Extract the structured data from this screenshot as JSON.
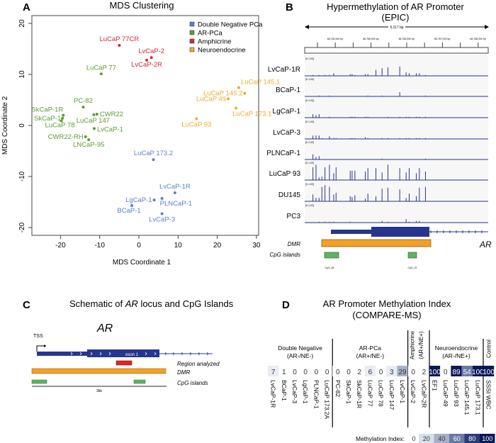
{
  "colors": {
    "double_negative": "#5b7fce",
    "ar_pca": "#5f9a32",
    "amphicrine": "#d6273a",
    "neuroendocrine": "#f0a92c",
    "track": "#26358f",
    "dmr": "#f4a024",
    "cpg": "#5fb55f",
    "region": "#e2222a"
  },
  "panelA": {
    "letter": "A",
    "chart_data": {
      "type": "scatter",
      "title": "MDS Clustering",
      "xlabel": "MDS Coordinate 1",
      "ylabel": "MDS Coordinate 2",
      "xlim": [
        -27,
        31
      ],
      "ylim": [
        -21.5,
        21.5
      ],
      "xticks": [
        -20,
        -10,
        0,
        10,
        20,
        30
      ],
      "yticks": [
        -20,
        -10,
        0,
        10,
        20
      ],
      "legend_position": "top-right",
      "grid": false,
      "series": [
        {
          "name": "Double Negative PCa",
          "color_key": "double_negative",
          "points": [
            {
              "label": "LuCaP 173.2",
              "x": 3.7,
              "y": -6.7
            },
            {
              "label": "LvCaP-1R",
              "x": 9.2,
              "y": -13.2
            },
            {
              "label": "LgCaP-1",
              "x": 3.9,
              "y": -14.6
            },
            {
              "label": "PLNCaP-1",
              "x": 5.9,
              "y": -14.3
            },
            {
              "label": "BCaP-1",
              "x": -1.8,
              "y": -15.7
            },
            {
              "label": "LvCaP-3",
              "x": 5.9,
              "y": -17.3
            }
          ]
        },
        {
          "name": "AR-PCa",
          "color_key": "ar_pca",
          "points": [
            {
              "label": "LuCaP 77",
              "x": -9.6,
              "y": 10.1
            },
            {
              "label": "PC-82",
              "x": -14.2,
              "y": 3.6
            },
            {
              "label": "SkCaP-1R",
              "x": -19.3,
              "y": 2.0
            },
            {
              "label": "SkCaP-1",
              "x": -19.5,
              "y": 1.4
            },
            {
              "label": "LuCaP 78",
              "x": -19.8,
              "y": 0.9
            },
            {
              "label": "CWR22",
              "x": -10.7,
              "y": 2.2
            },
            {
              "label": "LuCaP 147",
              "x": -11.5,
              "y": 2.1
            },
            {
              "label": "LvCaP-1",
              "x": -11.4,
              "y": -0.6
            },
            {
              "label": "CWR22-RH",
              "x": -13.6,
              "y": -2.2
            },
            {
              "label": "LNCaP-95",
              "x": -12.8,
              "y": -2.8
            }
          ]
        },
        {
          "name": "Amphicrine",
          "color_key": "amphicrine",
          "points": [
            {
              "label": "LuCaP 77CR",
              "x": -5.0,
              "y": 15.7
            },
            {
              "label": "LvCaP-2",
              "x": 3.2,
              "y": 13.3
            },
            {
              "label": "LvCaP-2R",
              "x": 2.0,
              "y": 12.8
            }
          ]
        },
        {
          "name": "Neuroendocrine",
          "color_key": "neuroendocrine",
          "points": [
            {
              "label": "LuCaP 145.1",
              "x": 25.5,
              "y": 7.4
            },
            {
              "label": "LuCaP 145.2",
              "x": 27.0,
              "y": 6.3
            },
            {
              "label": "LuCaP 49",
              "x": 22.8,
              "y": 5.2
            },
            {
              "label": "LuCaP 173.1",
              "x": 24.8,
              "y": 3.4
            },
            {
              "label": "LuCaP 93",
              "x": 14.7,
              "y": 1.3
            }
          ]
        }
      ]
    }
  },
  "panelB": {
    "letter": "B",
    "chart_data": {
      "type": "bar",
      "title": "Hypermethylation of AR Promoter",
      "subtitle": "(EPIC)",
      "span_label": "5,117 bp",
      "coord_labels": [
        "66,764,000 bp",
        "66,765,000 bp",
        "66,766,000 bp",
        "66,767,000 bp",
        "66,768,000 bp"
      ],
      "track_range": "[0-1.00]",
      "tracks": [
        {
          "name": "LvCaP-1R",
          "values": [
            0.05,
            0,
            0.05,
            0,
            0.05,
            0.05,
            0.15,
            0,
            0.1,
            0.1,
            0.05,
            0.1,
            0.1,
            0.35,
            0.45,
            0.5,
            0.55,
            0.2,
            0.15,
            0.15,
            0.15,
            0.05
          ]
        },
        {
          "name": "BCaP-1",
          "values": [
            0,
            0,
            0.03,
            0,
            0,
            0.03,
            0,
            0,
            0,
            0,
            0,
            0,
            0.03,
            0,
            0.03,
            0,
            0.25,
            0,
            0,
            0,
            0,
            0.03
          ]
        },
        {
          "name": "LgCaP-1",
          "values": [
            0.2,
            0.15,
            0.2,
            0,
            0,
            0.05,
            0,
            0,
            0.02,
            0.02,
            0.02,
            0.02,
            0.02,
            0,
            0,
            0.02,
            0.02,
            0.02,
            0.02,
            0.02,
            0.02,
            0.02
          ]
        },
        {
          "name": "LvCaP-3",
          "values": [
            0.2,
            0.2,
            0.2,
            0.05,
            0,
            0.15,
            0.05,
            0.03,
            0.03,
            0.03,
            0.03,
            0.1,
            0.03,
            0,
            0.03,
            0.05,
            0.05,
            0.03,
            0.05,
            0.03,
            0.03,
            0.03
          ]
        },
        {
          "name": "PLNCaP-1",
          "values": [
            0.3,
            0.15,
            0.2,
            0,
            0,
            0,
            0,
            0,
            0,
            0,
            0,
            0,
            0,
            0,
            0.05,
            0,
            0,
            0,
            0,
            0,
            0,
            0.03
          ]
        },
        {
          "name": "LuCaP 93",
          "values": [
            0.75,
            0.9,
            0.15,
            0.2,
            0.75,
            0.9,
            0.4,
            0.75,
            0.55,
            0.55,
            0.55,
            0.5,
            0.7,
            0.7,
            0.45,
            0.9,
            0.7,
            0.45,
            0.7,
            0.4,
            0.7,
            0.5
          ]
        },
        {
          "name": "DU145",
          "values": [
            0.4,
            0.2,
            0.2,
            0.85,
            0.95,
            0.85,
            0.4,
            0.5,
            0.3,
            0.25,
            0.35,
            0.15,
            0.45,
            0.3,
            0.75,
            0.8,
            0.7,
            0.2,
            0.45,
            0.3,
            0.8,
            0.85
          ]
        },
        {
          "name": "PC3",
          "values": [
            0,
            0,
            0.05,
            0,
            0.05,
            0.03,
            0.05,
            0,
            0.05,
            0,
            0,
            0,
            0,
            0,
            0.1,
            0.05,
            0,
            0.2,
            0.05,
            0.1,
            0.1,
            0
          ]
        }
      ],
      "gene_label": "AR",
      "dmr_label": "DMR",
      "cpg_label": "CpG islands",
      "cpg_names": [
        "CpG_54",
        "CpG_37"
      ]
    }
  },
  "panelC": {
    "letter": "C",
    "title_pre": "Schematic of ",
    "title_gene": "AR",
    "title_post": " locus and CpG Islands",
    "gene": "AR",
    "tss": "TSS",
    "exon": "exon 1",
    "region_label": "Region analyzed",
    "dmr_label": "DMR",
    "cpg_label": "CpG islands",
    "scale_label": "3kb"
  },
  "panelD": {
    "letter": "D",
    "chart_data": {
      "type": "heatmap",
      "title": "AR Promoter Methylation Index",
      "subtitle": "(COMPARE-MS)",
      "groups": [
        {
          "name": "Double Negative",
          "sub": "(AR-/NE-)",
          "samples": [
            {
              "label": "LvCaP-1R",
              "value": 7
            },
            {
              "label": "BCaP-1",
              "value": 1
            },
            {
              "label": "LvCaP-3",
              "value": 0
            },
            {
              "label": "LgCaP-1",
              "value": 0
            },
            {
              "label": "PLNCaP-1",
              "value": 0
            },
            {
              "label": "LuCaP 173.2A",
              "value": 0
            }
          ]
        },
        {
          "name": "AR-PCa",
          "sub": "(AR+/NE-)",
          "samples": [
            {
              "label": "PC-82",
              "value": 0
            },
            {
              "label": "SkCaP-1",
              "value": 0
            },
            {
              "label": "SkCaP-1R",
              "value": 2
            },
            {
              "label": "LuCaP 77",
              "value": 6
            },
            {
              "label": "LuCaP 78",
              "value": 0
            },
            {
              "label": "LuCaP 147",
              "value": 3
            },
            {
              "label": "LvCaP-1",
              "value": 29
            }
          ]
        },
        {
          "name": "Amphicrine",
          "sub": "(AR+/NE+)",
          "samples": [
            {
              "label": "LvCaP-2",
              "value": 0
            },
            {
              "label": "LvCaP-2R",
              "value": 2
            }
          ]
        },
        {
          "name": "Neuroendocrine",
          "sub": "(AR-/NE+)",
          "samples": [
            {
              "label": "EF1",
              "value": 100
            },
            {
              "label": "LuCaP 49",
              "value": 0
            },
            {
              "label": "LuCaP 93",
              "value": 89
            },
            {
              "label": "LuCaP 145.1",
              "value": 54
            },
            {
              "label": "LuCaP 173.1",
              "value": 100
            }
          ]
        },
        {
          "name": "Control",
          "sub": "",
          "samples": [
            {
              "label": "SSSI WBC",
              "value": 100
            }
          ]
        }
      ],
      "legend_label": "Methylation Index:",
      "legend_bins": [
        {
          "label": "0",
          "color": "#ffffff"
        },
        {
          "label": "20",
          "color": "#d9dfeb"
        },
        {
          "label": "40",
          "color": "#a6b0c9"
        },
        {
          "label": "60",
          "color": "#6a7aa6"
        },
        {
          "label": "80",
          "color": "#2c3c7a"
        },
        {
          "label": "100",
          "color": "#0b185a"
        }
      ]
    }
  }
}
